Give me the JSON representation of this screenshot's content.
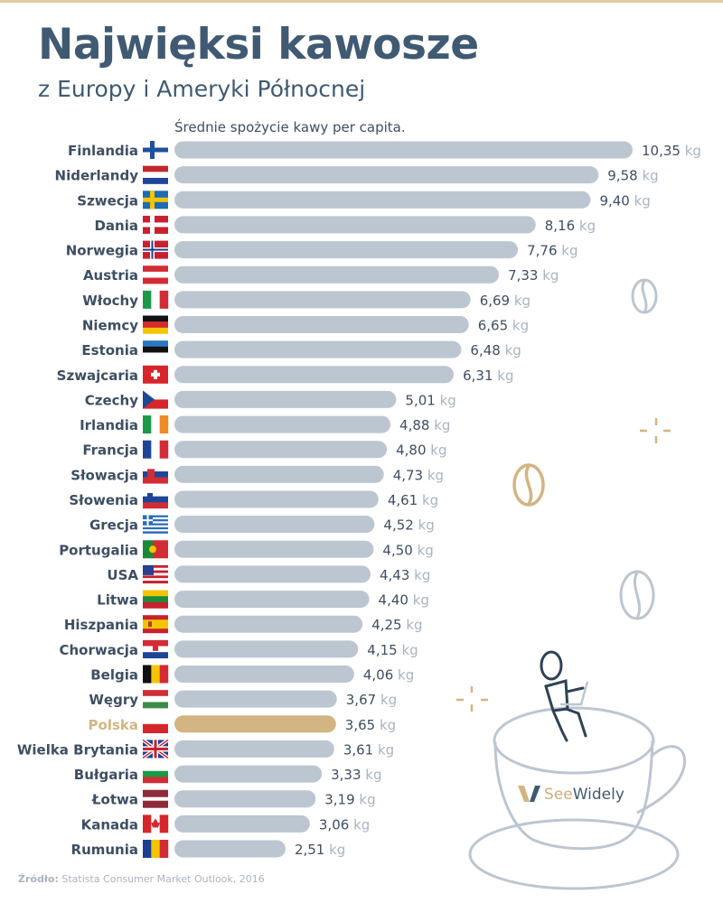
{
  "header": {
    "title": "Najwięksi kawosze",
    "subtitle": "z Europy i Ameryki Północnej"
  },
  "footer": {
    "source_label": "Źródło:",
    "source_text": "Statista Consumer Market Outlook, 2016"
  },
  "brand": {
    "logo_text": "SeeWidely"
  },
  "colors": {
    "accent_gold": "#d2b583",
    "bar_default": "#bcc6d1",
    "title": "#3f5a72",
    "value_text": "#3d4f63",
    "unit_text": "#a8b4c2",
    "top_line": "#e3cb9f"
  },
  "chart_data": {
    "type": "bar",
    "orientation": "horizontal",
    "title": "Średnie spożycie kawy per capita.",
    "unit": "kg",
    "highlight": "Polska",
    "xlim": [
      0,
      10.35
    ],
    "categories": [
      "Finlandia",
      "Niderlandy",
      "Szwecja",
      "Dania",
      "Norwegia",
      "Austria",
      "Włochy",
      "Niemcy",
      "Estonia",
      "Szwajcaria",
      "Czechy",
      "Irlandia",
      "Francja",
      "Słowacja",
      "Słowenia",
      "Grecja",
      "Portugalia",
      "USA",
      "Litwa",
      "Hiszpania",
      "Chorwacja",
      "Belgia",
      "Węgry",
      "Polska",
      "Wielka Brytania",
      "Bułgaria",
      "Łotwa",
      "Kanada",
      "Rumunia"
    ],
    "values": [
      10.35,
      9.58,
      9.4,
      8.16,
      7.76,
      7.33,
      6.69,
      6.65,
      6.48,
      6.31,
      5.01,
      4.88,
      4.8,
      4.73,
      4.61,
      4.52,
      4.5,
      4.43,
      4.4,
      4.25,
      4.15,
      4.06,
      3.67,
      3.65,
      3.61,
      3.33,
      3.19,
      3.06,
      2.51
    ],
    "value_labels": [
      "10,35",
      "9,58",
      "9,40",
      "8,16",
      "7,76",
      "7,33",
      "6,69",
      "6,65",
      "6,48",
      "6,31",
      "5,01",
      "4,88",
      "4,80",
      "4,73",
      "4,61",
      "4,52",
      "4,50",
      "4,43",
      "4,40",
      "4,25",
      "4,15",
      "4,06",
      "3,67",
      "3,65",
      "3,61",
      "3,33",
      "3,19",
      "3,06",
      "2,51"
    ],
    "flags": [
      "flag-fi",
      "flag-nl",
      "flag-se",
      "flag-dk",
      "flag-no",
      "flag-at",
      "flag-it",
      "flag-de",
      "flag-ee",
      "flag-ch",
      "flag-cz",
      "flag-ie",
      "flag-fr",
      "flag-sk",
      "flag-si",
      "flag-gr",
      "flag-pt",
      "flag-us",
      "flag-lt",
      "flag-es",
      "flag-hr",
      "flag-be",
      "flag-hu",
      "flag-pl",
      "flag-gb",
      "flag-bg",
      "flag-lv",
      "flag-ca",
      "flag-ro"
    ]
  }
}
